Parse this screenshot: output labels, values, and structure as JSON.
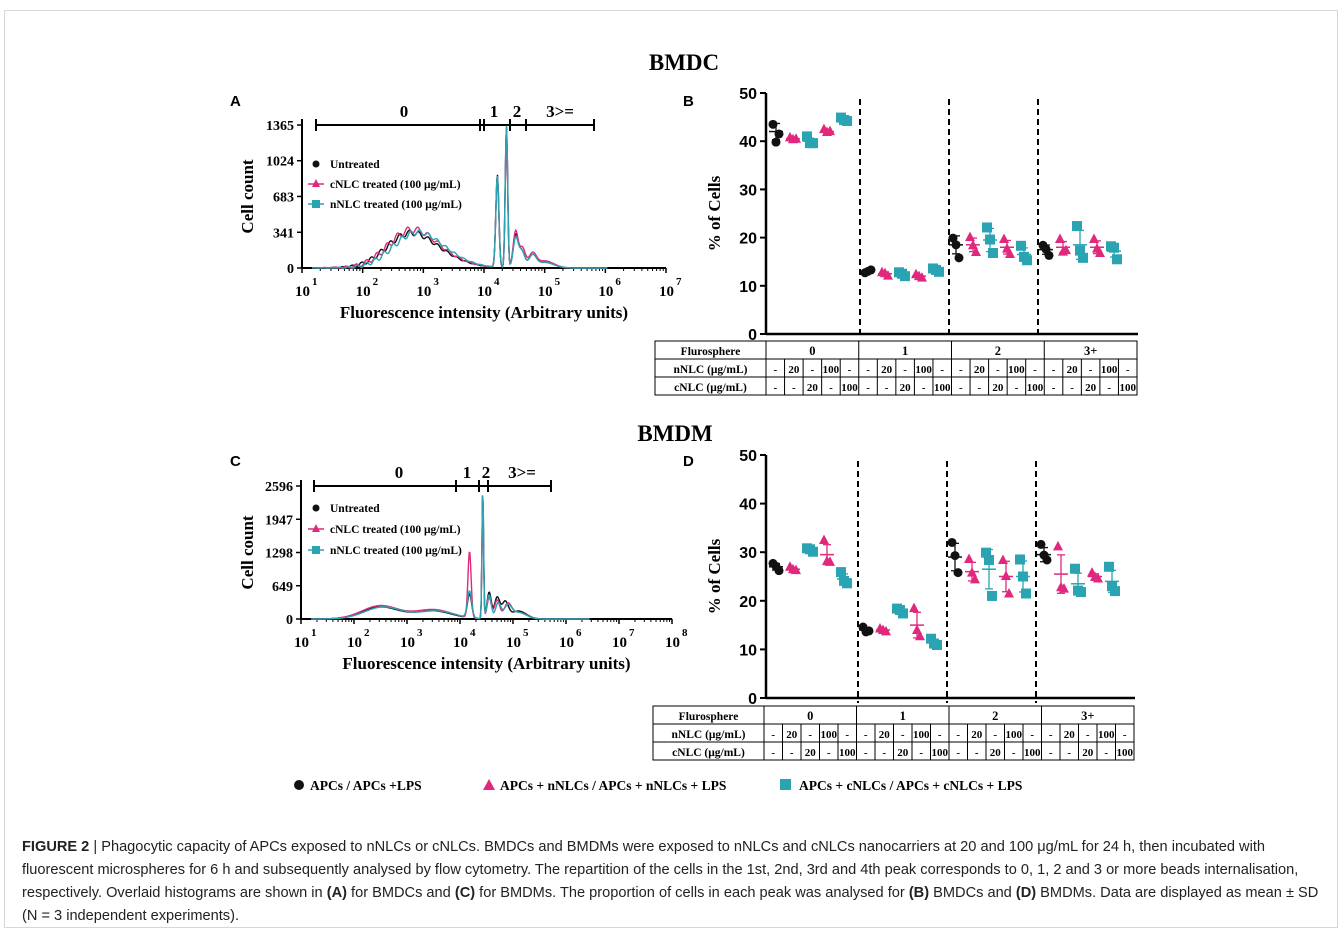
{
  "section_titles": {
    "top": "BMDC",
    "bottom": "BMDM"
  },
  "panels": {
    "A": {
      "letter": "A",
      "ylabel": "Cell count",
      "xlabel": "Fluorescence intensity (Arbitrary units)",
      "yticks": [
        "0",
        "341",
        "683",
        "1024",
        "1365"
      ],
      "y_values": [
        0,
        341,
        683,
        1024,
        1365
      ],
      "xtick_exps": [
        "1",
        "2",
        "3",
        "4",
        "5",
        "6",
        "7"
      ],
      "gates": [
        "0",
        "1",
        "2",
        "3>="
      ],
      "legend": [
        "Untreated",
        "cNLC treated (100 μg/mL)",
        "nNLC treated (100 μg/mL)"
      ]
    },
    "C": {
      "letter": "C",
      "ylabel": "Cell count",
      "xlabel": "Fluorescence intensity (Arbitrary units)",
      "yticks": [
        "0",
        "649",
        "1298",
        "1947",
        "2596"
      ],
      "y_values": [
        0,
        649,
        1298,
        1947,
        2596
      ],
      "xtick_exps": [
        "1",
        "2",
        "3",
        "4",
        "5",
        "6",
        "7",
        "8"
      ],
      "gates": [
        "0",
        "1",
        "2",
        "3>="
      ],
      "legend": [
        "Untreated",
        "cNLC treated (100 μg/mL)",
        "nNLC treated (100 μg/mL)"
      ]
    },
    "B": {
      "letter": "B",
      "ylabel": "% of Cells"
    },
    "D": {
      "letter": "D",
      "ylabel": "% of Cells"
    }
  },
  "colors": {
    "untreated": "#111111",
    "cnlc": "#e0287c",
    "nnlc": "#2aa3b3"
  },
  "table": {
    "header": "Flurosphere",
    "row_nnlc": "nNLC (μg/mL)",
    "row_cnlc": "cNLC (μg/mL)",
    "groups": [
      "0",
      "1",
      "2",
      "3+"
    ],
    "nnlc_values": [
      "-",
      "20",
      "-",
      "100",
      "-"
    ],
    "cnlc_values": [
      "-",
      "-",
      "20",
      "-",
      "100"
    ]
  },
  "bottom_legend": [
    "APCs / APCs +LPS",
    "APCs + nNLCs / APCs + nNLCs + LPS",
    "APCs + cNLCs / APCs + cNLCs + LPS"
  ],
  "chart_data": [
    {
      "id": "A",
      "type": "line",
      "title": "",
      "xlabel": "Fluorescence intensity (Arbitrary units)",
      "ylabel": "Cell count",
      "x_scale": "log10",
      "xlim": [
        10,
        10000000
      ],
      "ylim": [
        0,
        1365
      ],
      "series": [
        {
          "name": "Untreated"
        },
        {
          "name": "cNLC treated (100 μg/mL)"
        },
        {
          "name": "nNLC treated (100 μg/mL)"
        }
      ],
      "peaks_approx": [
        {
          "x": 25000,
          "y": 900
        },
        {
          "x": 33000,
          "y": 1340
        },
        {
          "x": 50000,
          "y": 350
        }
      ]
    },
    {
      "id": "C",
      "type": "line",
      "title": "",
      "xlabel": "Fluorescence intensity (Arbitrary units)",
      "ylabel": "Cell count",
      "x_scale": "log10",
      "xlim": [
        10,
        100000000
      ],
      "ylim": [
        0,
        2596
      ],
      "series": [
        {
          "name": "Untreated"
        },
        {
          "name": "cNLC treated (100 μg/mL)"
        },
        {
          "name": "nNLC treated (100 μg/mL)"
        }
      ],
      "peaks_approx": [
        {
          "x": 20000,
          "y": 1300
        },
        {
          "x": 35000,
          "y": 2540
        }
      ]
    },
    {
      "id": "B",
      "type": "scatter",
      "title": "",
      "ylabel": "% of Cells",
      "ylim": [
        0,
        50
      ],
      "y_ticks": [
        0,
        10,
        20,
        30,
        40,
        50
      ],
      "groups": [
        "0",
        "1",
        "2",
        "3+"
      ],
      "conditions": [
        "untreated",
        "nNLC 20",
        "cNLC 20",
        "nNLC 100",
        "cNLC 100"
      ],
      "means": [
        [
          42,
          40.5,
          40,
          42,
          44.5
        ],
        [
          13,
          12.5,
          12.5,
          12,
          13.3
        ],
        [
          18.5,
          18.5,
          19.5,
          18,
          16.5
        ],
        [
          17.5,
          18,
          18.5,
          18,
          17.2
        ]
      ],
      "points": [
        [
          [
            43.5,
            41.5,
            39.8
          ],
          [
            40.8,
            40.5,
            40.4
          ],
          [
            41.0,
            39.6,
            39.6
          ],
          [
            42.5,
            42.1,
            41.9
          ],
          [
            44.9,
            44.2,
            44.4
          ]
        ],
        [
          [
            12.7,
            13.3,
            13.0
          ],
          [
            12.8,
            12.1,
            12.6
          ],
          [
            12.8,
            12.0,
            12.5
          ],
          [
            12.4,
            11.7,
            12.0
          ],
          [
            13.6,
            12.9,
            13.3
          ]
        ],
        [
          [
            19.9,
            15.8,
            18.5
          ],
          [
            20.1,
            17.0,
            18.4
          ],
          [
            22.1,
            16.8,
            19.6
          ],
          [
            19.7,
            16.6,
            17.7
          ],
          [
            18.3,
            15.3,
            16.0
          ]
        ],
        [
          [
            18.4,
            16.3,
            17.6
          ],
          [
            19.7,
            17.4,
            17.1
          ],
          [
            22.4,
            15.8,
            17.3
          ],
          [
            19.7,
            16.8,
            17.7
          ],
          [
            18.2,
            15.5,
            17.9
          ]
        ]
      ]
    },
    {
      "id": "D",
      "type": "scatter",
      "title": "",
      "ylabel": "% of Cells",
      "ylim": [
        0,
        50
      ],
      "y_ticks": [
        0,
        10,
        20,
        30,
        40,
        50
      ],
      "groups": [
        "0",
        "1",
        "2",
        "3+"
      ],
      "conditions": [
        "untreated",
        "nNLC 20",
        "cNLC 20",
        "nNLC 100",
        "cNLC 100"
      ],
      "means": [
        [
          27,
          26.5,
          30.5,
          29.5,
          24.5
        ],
        [
          14,
          14,
          18,
          15,
          11.5
        ],
        [
          29,
          26,
          26.5,
          25,
          25
        ],
        [
          29.5,
          25.5,
          23.5,
          25,
          24
        ]
      ],
      "points": [
        [
          [
            27.7,
            26.2,
            27.1
          ],
          [
            27.0,
            26.3,
            26.5
          ],
          [
            30.8,
            30.1,
            30.6
          ],
          [
            32.5,
            28.0,
            28.2
          ],
          [
            25.9,
            23.6,
            24.1
          ]
        ],
        [
          [
            14.6,
            13.8,
            13.6
          ],
          [
            14.3,
            13.7,
            14.0
          ],
          [
            18.4,
            17.4,
            18.1
          ],
          [
            18.5,
            12.7,
            14.0
          ],
          [
            12.2,
            10.9,
            11.2
          ]
        ],
        [
          [
            32.0,
            25.8,
            29.3
          ],
          [
            28.6,
            24.4,
            25.8
          ],
          [
            29.9,
            21.0,
            28.4
          ],
          [
            28.4,
            21.5,
            25.1
          ],
          [
            28.5,
            21.5,
            25.0
          ]
        ],
        [
          [
            31.6,
            28.4,
            29.4
          ],
          [
            31.2,
            22.5,
            22.8
          ],
          [
            26.6,
            21.8,
            22.1
          ],
          [
            25.8,
            24.6,
            24.9
          ],
          [
            27.0,
            22.0,
            23.0
          ]
        ]
      ]
    }
  ],
  "caption": {
    "label": "FIGURE 2",
    "sep": " | ",
    "text1": "Phagocytic capacity of APCs exposed to nNLCs or cNLCs. BMDCs and BMDMs were exposed to nNLCs and cNLCs nanocarriers at 20 and 100 μg/mL for 24 h, then incubated with fluorescent microspheres for 6 h and subsequently analysed by flow cytometry. The repartition of the cells in the 1st, 2nd, 3rd and 4th peak corresponds to 0, 1, 2 and 3 or more beads internalisation, respectively. Overlaid histograms are shown in ",
    "refA": "(A)",
    "text2": " for BMDCs and ",
    "refC": "(C)",
    "text3": " for BMDMs. The proportion of cells in each peak was analysed for ",
    "refB": "(B)",
    "text4": " BMDCs and ",
    "refD": "(D)",
    "text5": " BMDMs. Data are displayed as mean ± SD (N = 3 independent experiments)."
  }
}
